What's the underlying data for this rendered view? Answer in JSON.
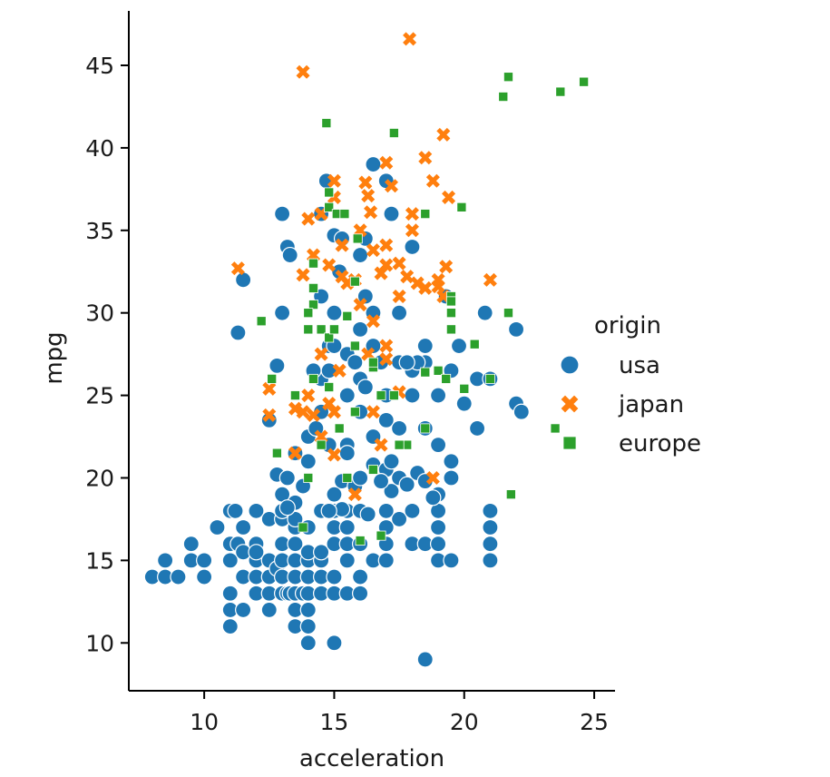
{
  "chart_data": {
    "type": "scatter",
    "title": "",
    "xlabel": "acceleration",
    "ylabel": "mpg",
    "xlim": [
      7.1,
      25.8
    ],
    "ylim": [
      7.1,
      48.3
    ],
    "xticks": [
      10,
      15,
      20,
      25
    ],
    "yticks": [
      10,
      15,
      20,
      25,
      30,
      35,
      40,
      45
    ],
    "grid": false,
    "legend": {
      "title": "origin",
      "placement": "right"
    },
    "series": [
      {
        "name": "usa",
        "color": "#1f77b4",
        "marker": "circle",
        "points": [
          [
            8,
            14
          ],
          [
            8.5,
            14
          ],
          [
            9,
            14
          ],
          [
            8.5,
            15
          ],
          [
            9.5,
            15
          ],
          [
            10,
            14
          ],
          [
            9.5,
            16
          ],
          [
            10,
            15
          ],
          [
            10.5,
            17
          ],
          [
            11,
            11
          ],
          [
            11,
            12
          ],
          [
            11,
            13
          ],
          [
            11,
            15
          ],
          [
            11,
            16
          ],
          [
            11,
            18
          ],
          [
            11.2,
            18
          ],
          [
            11.3,
            16
          ],
          [
            11.5,
            12
          ],
          [
            11.5,
            14
          ],
          [
            11.5,
            15.5
          ],
          [
            11.5,
            17
          ],
          [
            12,
            13
          ],
          [
            12,
            14
          ],
          [
            12,
            15
          ],
          [
            12,
            16
          ],
          [
            12,
            18
          ],
          [
            12,
            15.5
          ],
          [
            12.5,
            12
          ],
          [
            12.5,
            13
          ],
          [
            12.5,
            14
          ],
          [
            12.5,
            15
          ],
          [
            12.5,
            17.5
          ],
          [
            12.8,
            14.5
          ],
          [
            13,
            13
          ],
          [
            13,
            14
          ],
          [
            13,
            15
          ],
          [
            13,
            16
          ],
          [
            13,
            17.5
          ],
          [
            13,
            18
          ],
          [
            13,
            19
          ],
          [
            13.2,
            13
          ],
          [
            13.3,
            13
          ],
          [
            13.5,
            12
          ],
          [
            13.5,
            13
          ],
          [
            13.5,
            14
          ],
          [
            13.5,
            15
          ],
          [
            13.5,
            16
          ],
          [
            13.5,
            17
          ],
          [
            13.5,
            17.5
          ],
          [
            13.5,
            11
          ],
          [
            13.8,
            13
          ],
          [
            14,
            10
          ],
          [
            14,
            11
          ],
          [
            14,
            12
          ],
          [
            14,
            13
          ],
          [
            14,
            14
          ],
          [
            14,
            15
          ],
          [
            14,
            15.5
          ],
          [
            14,
            17
          ],
          [
            14.5,
            13
          ],
          [
            14.5,
            14
          ],
          [
            14.5,
            15
          ],
          [
            14.5,
            15.5
          ],
          [
            14.5,
            18
          ],
          [
            15,
            10
          ],
          [
            15,
            13
          ],
          [
            15,
            14
          ],
          [
            15,
            16
          ],
          [
            15,
            17
          ],
          [
            15,
            18
          ],
          [
            15.5,
            13
          ],
          [
            15.5,
            15
          ],
          [
            15.5,
            16
          ],
          [
            15.5,
            17
          ],
          [
            15.5,
            18
          ],
          [
            16,
            13
          ],
          [
            16,
            14
          ],
          [
            16,
            16
          ],
          [
            16,
            18
          ],
          [
            16.5,
            15
          ],
          [
            17,
            15
          ],
          [
            17,
            16
          ],
          [
            17,
            17
          ],
          [
            17,
            18
          ],
          [
            17.5,
            17.5
          ],
          [
            18,
            16
          ],
          [
            18,
            18
          ],
          [
            18.5,
            9
          ],
          [
            18.5,
            16
          ],
          [
            19,
            15
          ],
          [
            19,
            16
          ],
          [
            19,
            17
          ],
          [
            19,
            18
          ],
          [
            19.5,
            15
          ],
          [
            21,
            15
          ],
          [
            21,
            16
          ],
          [
            21,
            17
          ],
          [
            21,
            18
          ],
          [
            11.3,
            28.8
          ],
          [
            11.5,
            32
          ],
          [
            13,
            36
          ],
          [
            13.2,
            34
          ],
          [
            13.3,
            33.5
          ],
          [
            13,
            30
          ],
          [
            12.8,
            26.8
          ],
          [
            12.5,
            23.5
          ],
          [
            12.8,
            20.2
          ],
          [
            13,
            19
          ],
          [
            13.2,
            20
          ],
          [
            13.5,
            21.5
          ],
          [
            13.5,
            18.5
          ],
          [
            13.2,
            18.2
          ],
          [
            13.8,
            19.5
          ],
          [
            14,
            21
          ],
          [
            14,
            22.5
          ],
          [
            14.3,
            23
          ],
          [
            14.5,
            24
          ],
          [
            14.5,
            26
          ],
          [
            14.8,
            26.5
          ],
          [
            14.8,
            28
          ],
          [
            14.5,
            31
          ],
          [
            15,
            30
          ],
          [
            15.2,
            32.5
          ],
          [
            15,
            34.7
          ],
          [
            15.3,
            34.5
          ],
          [
            14.5,
            36
          ],
          [
            14.7,
            38
          ],
          [
            15,
            28
          ],
          [
            15.5,
            27.5
          ],
          [
            15.5,
            25
          ],
          [
            15.5,
            22
          ],
          [
            15.3,
            19.8
          ],
          [
            15,
            19
          ],
          [
            15.8,
            19.5
          ],
          [
            15.5,
            21.5
          ],
          [
            16,
            24
          ],
          [
            16,
            26
          ],
          [
            16,
            29
          ],
          [
            16.2,
            31
          ],
          [
            16.5,
            30
          ],
          [
            16.5,
            28
          ],
          [
            16,
            33.5
          ],
          [
            16.2,
            34.5
          ],
          [
            16.5,
            39
          ],
          [
            17,
            38
          ],
          [
            17.2,
            36
          ],
          [
            17.5,
            30
          ],
          [
            17.5,
            27
          ],
          [
            17,
            25
          ],
          [
            17,
            23.5
          ],
          [
            16.5,
            22.5
          ],
          [
            16.5,
            20.8
          ],
          [
            17,
            20.5
          ],
          [
            17.2,
            19.2
          ],
          [
            17.5,
            20
          ],
          [
            17.5,
            23
          ],
          [
            18,
            26.5
          ],
          [
            18,
            25
          ],
          [
            18.5,
            28
          ],
          [
            18.5,
            27
          ],
          [
            18.5,
            23
          ],
          [
            19,
            22
          ],
          [
            19,
            25
          ],
          [
            19.5,
            26.5
          ],
          [
            19.5,
            21
          ],
          [
            19.5,
            20
          ],
          [
            19,
            19
          ],
          [
            19.3,
            31
          ],
          [
            19.8,
            28
          ],
          [
            20,
            24.5
          ],
          [
            20.5,
            23
          ],
          [
            20.5,
            26
          ],
          [
            20.8,
            30
          ],
          [
            21,
            26
          ],
          [
            22,
            29
          ],
          [
            22,
            24.5
          ],
          [
            22.2,
            24
          ],
          [
            18.2,
            27
          ],
          [
            18,
            34
          ],
          [
            17.8,
            27
          ],
          [
            18.2,
            20.3
          ],
          [
            16.8,
            27
          ],
          [
            15.8,
            27
          ],
          [
            16.2,
            25.5
          ],
          [
            17.2,
            21
          ],
          [
            14.2,
            26.5
          ],
          [
            14.8,
            22
          ],
          [
            15.3,
            18.1
          ],
          [
            14.8,
            18
          ],
          [
            16.3,
            17.8
          ],
          [
            16.8,
            19.8
          ],
          [
            17.8,
            19.6
          ],
          [
            18.8,
            18.8
          ],
          [
            18.5,
            19.8
          ],
          [
            16,
            20
          ]
        ]
      },
      {
        "name": "japan",
        "color": "#ff7f0e",
        "marker": "x",
        "points": [
          [
            13.8,
            44.6
          ],
          [
            17.9,
            46.6
          ],
          [
            11.3,
            32.7
          ],
          [
            12.5,
            25.4
          ],
          [
            13.5,
            24.2
          ],
          [
            13.8,
            32.3
          ],
          [
            14,
            35.7
          ],
          [
            14.5,
            36
          ],
          [
            14.2,
            33.5
          ],
          [
            14.5,
            27.5
          ],
          [
            14.8,
            32.9
          ],
          [
            15,
            38
          ],
          [
            15,
            37
          ],
          [
            15.3,
            32.2
          ],
          [
            15.3,
            34.1
          ],
          [
            15.5,
            31.8
          ],
          [
            15.8,
            32
          ],
          [
            16,
            30.5
          ],
          [
            16,
            35
          ],
          [
            16.2,
            37.9
          ],
          [
            16.3,
            37.1
          ],
          [
            16.4,
            36.1
          ],
          [
            16.5,
            33.8
          ],
          [
            16.5,
            29.5
          ],
          [
            16.8,
            32.4
          ],
          [
            17,
            39.1
          ],
          [
            17,
            34.1
          ],
          [
            17,
            32.9
          ],
          [
            17,
            27.2
          ],
          [
            17.2,
            37.7
          ],
          [
            17.5,
            33
          ],
          [
            17.5,
            31
          ],
          [
            17.8,
            32.2
          ],
          [
            18,
            36
          ],
          [
            18,
            35
          ],
          [
            18.2,
            31.8
          ],
          [
            18.5,
            31.5
          ],
          [
            18.5,
            39.4
          ],
          [
            18.8,
            38
          ],
          [
            19,
            32
          ],
          [
            19,
            31.6
          ],
          [
            19.2,
            40.8
          ],
          [
            19.2,
            31
          ],
          [
            19.3,
            32.8
          ],
          [
            19.4,
            37
          ],
          [
            21,
            32
          ],
          [
            15,
            24
          ],
          [
            14.8,
            24.5
          ],
          [
            14,
            25
          ],
          [
            13.8,
            24
          ],
          [
            13.5,
            21.5
          ],
          [
            14.5,
            22.5
          ],
          [
            15,
            21.4
          ],
          [
            15.8,
            19
          ],
          [
            16.5,
            24
          ],
          [
            16.8,
            22
          ],
          [
            17,
            28
          ],
          [
            18.8,
            20
          ],
          [
            14.2,
            23.8
          ],
          [
            16.3,
            27.5
          ],
          [
            17.5,
            25.2
          ],
          [
            15.2,
            26.5
          ],
          [
            12.5,
            23.8
          ]
        ]
      },
      {
        "name": "europe",
        "color": "#2ca02c",
        "marker": "square",
        "points": [
          [
            21.7,
            44.3
          ],
          [
            23.7,
            43.4
          ],
          [
            24.6,
            44
          ],
          [
            21.5,
            43.1
          ],
          [
            14.7,
            41.5
          ],
          [
            17.3,
            40.9
          ],
          [
            14.8,
            36.4
          ],
          [
            15.1,
            36
          ],
          [
            15.4,
            36
          ],
          [
            15.9,
            34.5
          ],
          [
            14.8,
            37.3
          ],
          [
            18.5,
            36
          ],
          [
            19.9,
            36.4
          ],
          [
            14.2,
            33
          ],
          [
            14.2,
            31.5
          ],
          [
            14.2,
            30.5
          ],
          [
            14,
            29
          ],
          [
            14.5,
            29
          ],
          [
            15.5,
            29.8
          ],
          [
            15.8,
            28
          ],
          [
            16.5,
            26.7
          ],
          [
            14.8,
            28.5
          ],
          [
            12.2,
            29.5
          ],
          [
            12.6,
            26
          ],
          [
            13.5,
            25
          ],
          [
            14.2,
            26
          ],
          [
            14.8,
            25.5
          ],
          [
            15.2,
            23
          ],
          [
            15.8,
            24
          ],
          [
            16.5,
            27
          ],
          [
            16.8,
            25
          ],
          [
            17.3,
            25
          ],
          [
            17.8,
            22
          ],
          [
            18.5,
            23
          ],
          [
            19,
            26.5
          ],
          [
            19.3,
            26
          ],
          [
            19.5,
            31
          ],
          [
            19.5,
            30
          ],
          [
            19.5,
            29
          ],
          [
            20.4,
            28.1
          ],
          [
            20,
            25.4
          ],
          [
            21,
            26
          ],
          [
            21.7,
            30
          ],
          [
            21.8,
            19
          ],
          [
            23.5,
            23
          ],
          [
            12.8,
            21.5
          ],
          [
            13.8,
            17
          ],
          [
            14,
            20
          ],
          [
            14.5,
            22
          ],
          [
            15.5,
            20
          ],
          [
            16,
            16.2
          ],
          [
            16.5,
            20.5
          ],
          [
            16.8,
            16.5
          ],
          [
            17.5,
            22
          ],
          [
            18.5,
            26.4
          ],
          [
            19.5,
            30.7
          ],
          [
            14,
            30
          ],
          [
            15,
            29
          ],
          [
            15.8,
            31.9
          ]
        ]
      }
    ]
  }
}
